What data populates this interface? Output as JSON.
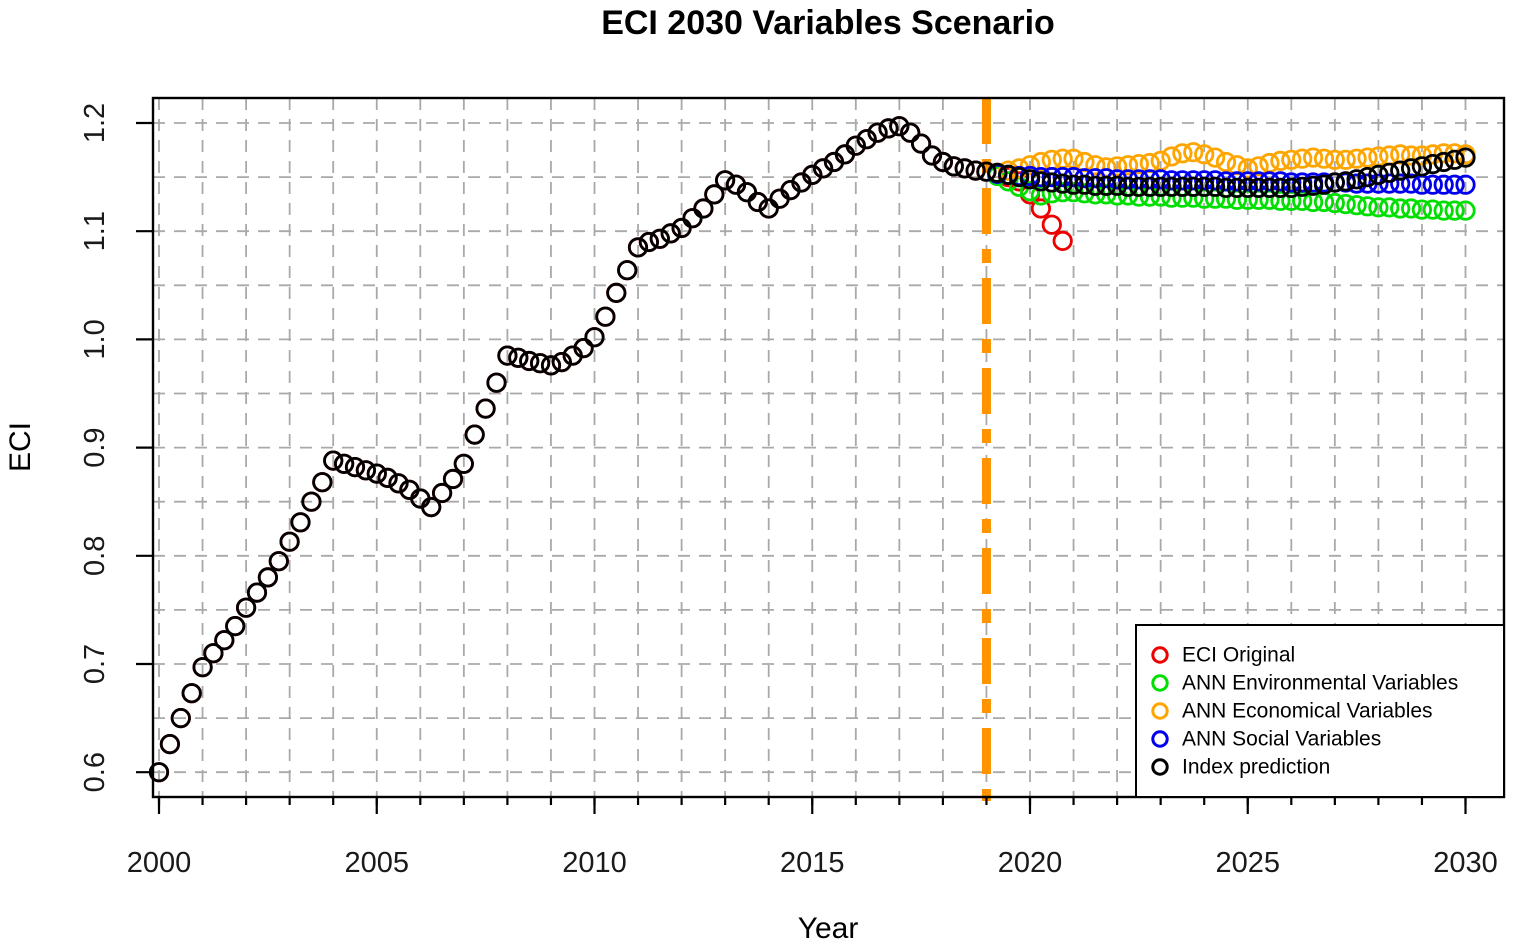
{
  "chart_data": {
    "type": "scatter",
    "title": "ECI 2030 Variables Scenario",
    "xlabel": "Year",
    "ylabel": "ECI",
    "xlim": [
      2000,
      2030
    ],
    "ylim": [
      0.6,
      1.2
    ],
    "grid": {
      "on": true,
      "x_interval_years": 1,
      "y_interval": 0.05,
      "style": "dashed",
      "color": "#a9a9a9"
    },
    "x_axis": {
      "major_tick_positions": [
        2000,
        2005,
        2010,
        2015,
        2020,
        2025,
        2030
      ],
      "major_tick_labels": [
        "2000",
        "2005",
        "2010",
        "2015",
        "2020",
        "2025",
        "2030"
      ],
      "minor_tick_interval_years": 1
    },
    "y_axis": {
      "tick_positions": [
        0.6,
        0.7,
        0.8,
        0.9,
        1.0,
        1.1,
        1.2
      ],
      "tick_labels": [
        "0.6",
        "0.7",
        "0.8",
        "0.9",
        "1.0",
        "1.1",
        "1.2"
      ],
      "labels_rotated": true
    },
    "forecast_start_line": {
      "x": 2019,
      "color": "#FF9400",
      "style": "dash-dot",
      "width": 9
    },
    "legend": {
      "position": "bottom-right",
      "items": [
        {
          "label": "ECI Original",
          "color": "#EE0000"
        },
        {
          "label": "ANN Environmental Variables",
          "color": "#00DF00"
        },
        {
          "label": "ANN Economical Variables",
          "color": "#FFA500"
        },
        {
          "label": "ANN Social Variables",
          "color": "#0000EE"
        },
        {
          "label": "Index prediction",
          "color": "#000000"
        }
      ]
    },
    "series": [
      {
        "name": "ECI Original",
        "key": "eci-original",
        "color": "#EE0000",
        "marker": "open-circle",
        "x_start": 2000,
        "x_step": 0.25,
        "values": [
          0.6,
          0.626,
          0.65,
          0.673,
          0.697,
          0.71,
          0.722,
          0.735,
          0.752,
          0.766,
          0.78,
          0.795,
          0.813,
          0.831,
          0.85,
          0.868,
          0.888,
          0.885,
          0.882,
          0.879,
          0.876,
          0.872,
          0.867,
          0.861,
          0.853,
          0.845,
          0.858,
          0.871,
          0.885,
          0.912,
          0.936,
          0.96,
          0.985,
          0.983,
          0.98,
          0.978,
          0.976,
          0.979,
          0.985,
          0.992,
          1.002,
          1.021,
          1.043,
          1.064,
          1.085,
          1.09,
          1.093,
          1.098,
          1.103,
          1.112,
          1.121,
          1.134,
          1.147,
          1.143,
          1.136,
          1.127,
          1.121,
          1.13,
          1.138,
          1.145,
          1.152,
          1.158,
          1.164,
          1.171,
          1.179,
          1.185,
          1.191,
          1.195,
          1.197,
          1.191,
          1.181,
          1.17,
          1.164,
          1.16,
          1.158,
          1.156,
          1.155,
          1.153,
          1.15,
          1.146,
          1.134,
          1.121,
          1.106,
          1.091
        ]
      },
      {
        "name": "ANN Environmental Variables",
        "key": "ann-environmental",
        "color": "#00DF00",
        "marker": "open-circle",
        "x_start": 2019.25,
        "x_step": 0.25,
        "values": [
          1.151,
          1.146,
          1.141,
          1.137,
          1.133,
          1.135,
          1.136,
          1.136,
          1.135,
          1.134,
          1.134,
          1.133,
          1.133,
          1.132,
          1.132,
          1.132,
          1.131,
          1.131,
          1.131,
          1.13,
          1.13,
          1.13,
          1.129,
          1.129,
          1.129,
          1.129,
          1.128,
          1.128,
          1.128,
          1.127,
          1.127,
          1.126,
          1.125,
          1.124,
          1.123,
          1.122,
          1.122,
          1.121,
          1.121,
          1.12,
          1.12,
          1.119,
          1.119,
          1.119
        ]
      },
      {
        "name": "ANN Economical Variables",
        "key": "ann-economical",
        "color": "#FFA500",
        "marker": "open-circle",
        "x_start": 2019.25,
        "x_step": 0.25,
        "values": [
          1.154,
          1.156,
          1.158,
          1.161,
          1.164,
          1.166,
          1.167,
          1.167,
          1.164,
          1.161,
          1.159,
          1.16,
          1.161,
          1.162,
          1.163,
          1.165,
          1.169,
          1.172,
          1.173,
          1.171,
          1.168,
          1.164,
          1.161,
          1.158,
          1.16,
          1.163,
          1.165,
          1.166,
          1.167,
          1.168,
          1.167,
          1.166,
          1.166,
          1.167,
          1.168,
          1.169,
          1.17,
          1.171,
          1.17,
          1.17,
          1.171,
          1.172,
          1.172,
          1.171
        ]
      },
      {
        "name": "ANN Social Variables",
        "key": "ann-social",
        "color": "#0000EE",
        "marker": "open-circle",
        "x_start": 2019.25,
        "x_step": 0.25,
        "values": [
          1.153,
          1.152,
          1.151,
          1.151,
          1.15,
          1.15,
          1.15,
          1.15,
          1.149,
          1.149,
          1.149,
          1.148,
          1.148,
          1.148,
          1.148,
          1.148,
          1.147,
          1.147,
          1.147,
          1.147,
          1.147,
          1.146,
          1.146,
          1.146,
          1.146,
          1.146,
          1.146,
          1.145,
          1.145,
          1.145,
          1.145,
          1.145,
          1.145,
          1.144,
          1.144,
          1.144,
          1.144,
          1.144,
          1.144,
          1.143,
          1.143,
          1.143,
          1.143,
          1.143
        ]
      },
      {
        "name": "Index prediction",
        "key": "index-prediction",
        "color": "#000000",
        "marker": "open-circle",
        "x_start": 2000,
        "x_step": 0.25,
        "values": [
          0.6,
          0.626,
          0.65,
          0.673,
          0.697,
          0.71,
          0.722,
          0.735,
          0.752,
          0.766,
          0.78,
          0.795,
          0.813,
          0.831,
          0.85,
          0.868,
          0.888,
          0.885,
          0.882,
          0.879,
          0.876,
          0.872,
          0.867,
          0.861,
          0.853,
          0.845,
          0.858,
          0.871,
          0.885,
          0.912,
          0.936,
          0.96,
          0.985,
          0.983,
          0.98,
          0.978,
          0.976,
          0.979,
          0.985,
          0.992,
          1.002,
          1.021,
          1.043,
          1.064,
          1.085,
          1.09,
          1.093,
          1.098,
          1.103,
          1.112,
          1.121,
          1.134,
          1.147,
          1.143,
          1.136,
          1.127,
          1.121,
          1.13,
          1.138,
          1.145,
          1.152,
          1.158,
          1.164,
          1.171,
          1.179,
          1.185,
          1.191,
          1.195,
          1.197,
          1.191,
          1.181,
          1.17,
          1.164,
          1.16,
          1.158,
          1.156,
          1.155,
          1.154,
          1.152,
          1.15,
          1.148,
          1.146,
          1.145,
          1.144,
          1.143,
          1.143,
          1.142,
          1.142,
          1.142,
          1.141,
          1.141,
          1.141,
          1.141,
          1.141,
          1.141,
          1.141,
          1.141,
          1.141,
          1.14,
          1.14,
          1.14,
          1.14,
          1.14,
          1.14,
          1.14,
          1.141,
          1.142,
          1.143,
          1.145,
          1.146,
          1.148,
          1.15,
          1.152,
          1.154,
          1.156,
          1.158,
          1.16,
          1.162,
          1.164,
          1.166,
          1.168
        ]
      }
    ]
  }
}
